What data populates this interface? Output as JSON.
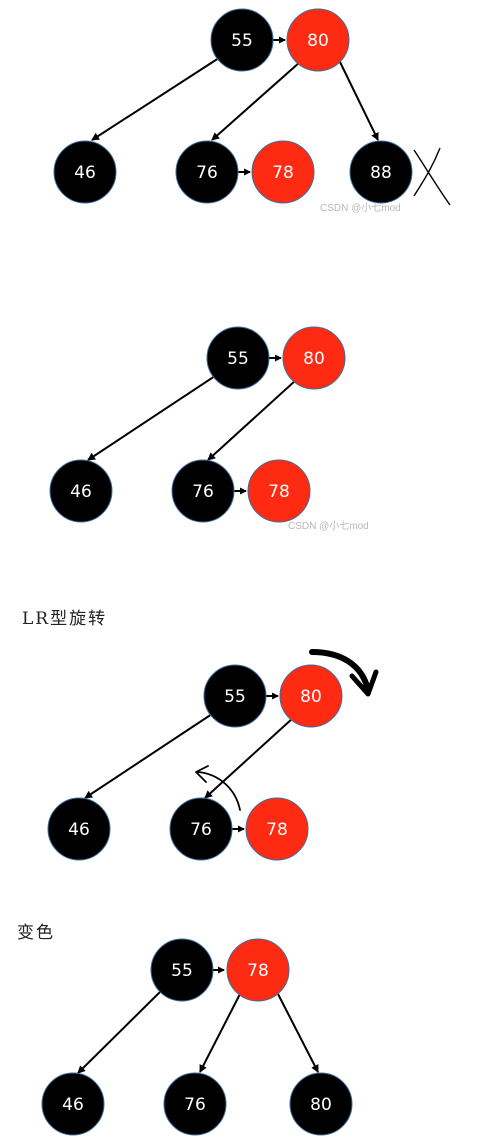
{
  "colors": {
    "black_node": "#000000",
    "red_node": "#ff2a12",
    "node_border": "#3a6fa0",
    "edge": "#000000",
    "watermark": "#b8b8b8"
  },
  "diagrams": [
    {
      "id": "step1",
      "nodes": [
        {
          "label": "55",
          "color": "black"
        },
        {
          "label": "80",
          "color": "red"
        },
        {
          "label": "46",
          "color": "black"
        },
        {
          "label": "76",
          "color": "black"
        },
        {
          "label": "78",
          "color": "red"
        },
        {
          "label": "88",
          "color": "black"
        }
      ],
      "watermark": "CSDN @小七mod",
      "deleted_mark": "X"
    },
    {
      "id": "step2",
      "nodes": [
        {
          "label": "55",
          "color": "black"
        },
        {
          "label": "80",
          "color": "red"
        },
        {
          "label": "46",
          "color": "black"
        },
        {
          "label": "76",
          "color": "black"
        },
        {
          "label": "78",
          "color": "red"
        }
      ],
      "watermark": "CSDN @小七mod"
    },
    {
      "id": "step3",
      "heading": "LR型旋转",
      "nodes": [
        {
          "label": "55",
          "color": "black"
        },
        {
          "label": "80",
          "color": "red"
        },
        {
          "label": "46",
          "color": "black"
        },
        {
          "label": "76",
          "color": "black"
        },
        {
          "label": "78",
          "color": "red"
        }
      ]
    },
    {
      "id": "step4",
      "heading": "变色",
      "nodes": [
        {
          "label": "55",
          "color": "black"
        },
        {
          "label": "78",
          "color": "red"
        },
        {
          "label": "46",
          "color": "black"
        },
        {
          "label": "76",
          "color": "black"
        },
        {
          "label": "80",
          "color": "black"
        }
      ]
    }
  ]
}
